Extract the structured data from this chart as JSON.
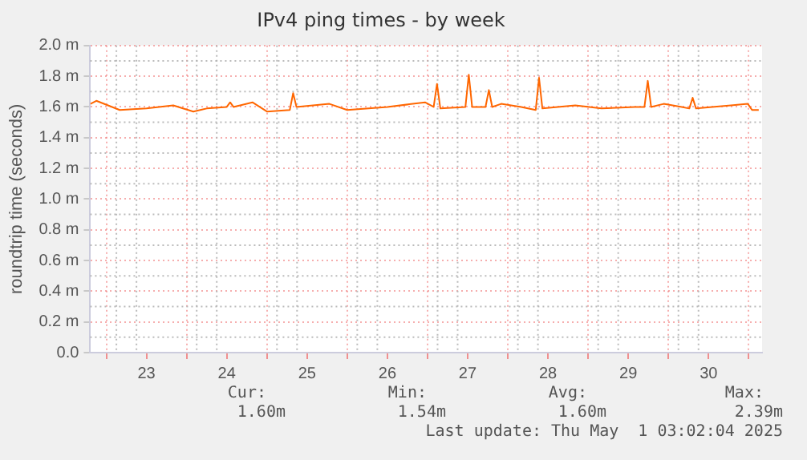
{
  "chart_data": {
    "type": "line",
    "title": "IPv4 ping times - by week",
    "ylabel": "roundtrip time (seconds)",
    "x": [
      "2025-04-22T19:15",
      "2025-04-22T21:00",
      "2025-04-23T04:00",
      "2025-04-23T12:00",
      "2025-04-23T20:00",
      "2025-04-24T02:00",
      "2025-04-24T06:00",
      "2025-04-24T12:00",
      "2025-04-24T13:00",
      "2025-04-24T14:00",
      "2025-04-24T19:40",
      "2025-04-25T00:00",
      "2025-04-25T06:50",
      "2025-04-25T07:50",
      "2025-04-25T08:50",
      "2025-04-25T18:40",
      "2025-04-26T00:00",
      "2025-04-26T12:00",
      "2025-04-26T23:15",
      "2025-04-27T01:50",
      "2025-04-27T02:50",
      "2025-04-27T03:50",
      "2025-04-27T11:20",
      "2025-04-27T12:20",
      "2025-04-27T13:20",
      "2025-04-27T17:20",
      "2025-04-27T18:20",
      "2025-04-27T19:20",
      "2025-04-27T22:00",
      "2025-04-28T04:00",
      "2025-04-28T08:20",
      "2025-04-28T09:20",
      "2025-04-28T10:20",
      "2025-04-28T20:10",
      "2025-04-29T04:00",
      "2025-04-29T14:00",
      "2025-04-29T16:50",
      "2025-04-29T17:50",
      "2025-04-29T18:50",
      "2025-04-29T22:35",
      "2025-04-30T04:00",
      "2025-04-30T06:15",
      "2025-04-30T07:15",
      "2025-04-30T08:15",
      "2025-04-30T18:40",
      "2025-04-30T23:45",
      "2025-05-01T01:00",
      "2025-05-01T03:00"
    ],
    "series": [
      {
        "color": "#ff6600",
        "values": [
          1.62,
          1.64,
          1.58,
          1.59,
          1.61,
          1.57,
          1.59,
          1.6,
          1.63,
          1.6,
          1.63,
          1.57,
          1.58,
          1.69,
          1.6,
          1.62,
          1.58,
          1.6,
          1.63,
          1.6,
          1.75,
          1.59,
          1.6,
          1.81,
          1.6,
          1.6,
          1.71,
          1.6,
          1.62,
          1.6,
          1.58,
          1.79,
          1.59,
          1.61,
          1.59,
          1.6,
          1.6,
          1.77,
          1.6,
          1.62,
          1.6,
          1.59,
          1.66,
          1.59,
          1.61,
          1.62,
          1.58,
          1.58
        ]
      }
    ],
    "ylim": [
      0,
      2
    ],
    "yticks": [
      {
        "value": 0,
        "label": "0.0"
      },
      {
        "value": 0.2,
        "label": "0.2 m"
      },
      {
        "value": 0.4,
        "label": "0.4 m"
      },
      {
        "value": 0.6,
        "label": "0.6 m"
      },
      {
        "value": 0.8,
        "label": "0.8 m"
      },
      {
        "value": 1,
        "label": "1.0 m"
      },
      {
        "value": 1.2,
        "label": "1.2 m"
      },
      {
        "value": 1.4,
        "label": "1.4 m"
      },
      {
        "value": 1.6,
        "label": "1.6 m"
      },
      {
        "value": 1.8,
        "label": "1.8 m"
      },
      {
        "value": 2,
        "label": "2.0 m"
      }
    ],
    "xlim": [
      "2025-04-22T19:10",
      "2025-05-01T04:00"
    ],
    "xticks": [
      {
        "value": "2025-04-23T00:00",
        "label": null
      },
      {
        "value": "2025-04-23T12:00",
        "label": "23"
      },
      {
        "value": "2025-04-24T00:00",
        "label": null
      },
      {
        "value": "2025-04-24T12:00",
        "label": "24"
      },
      {
        "value": "2025-04-25T00:00",
        "label": null
      },
      {
        "value": "2025-04-25T12:00",
        "label": "25"
      },
      {
        "value": "2025-04-26T00:00",
        "label": null
      },
      {
        "value": "2025-04-26T12:00",
        "label": "26"
      },
      {
        "value": "2025-04-27T00:00",
        "label": null
      },
      {
        "value": "2025-04-27T12:00",
        "label": "27"
      },
      {
        "value": "2025-04-28T00:00",
        "label": null
      },
      {
        "value": "2025-04-28T12:00",
        "label": "28"
      },
      {
        "value": "2025-04-29T00:00",
        "label": null
      },
      {
        "value": "2025-04-29T12:00",
        "label": "29"
      },
      {
        "value": "2025-04-30T00:00",
        "label": null
      },
      {
        "value": "2025-04-30T12:00",
        "label": "30"
      },
      {
        "value": "2025-05-01T00:00",
        "label": null
      }
    ],
    "grid": true,
    "annotations": [
      "Cur:",
      "Min:",
      "Avg:",
      "Max:",
      "1.60m",
      "1.54m",
      "1.60m",
      "2.39m",
      "Last update: Thu May  1 03:02:04 2025"
    ]
  }
}
